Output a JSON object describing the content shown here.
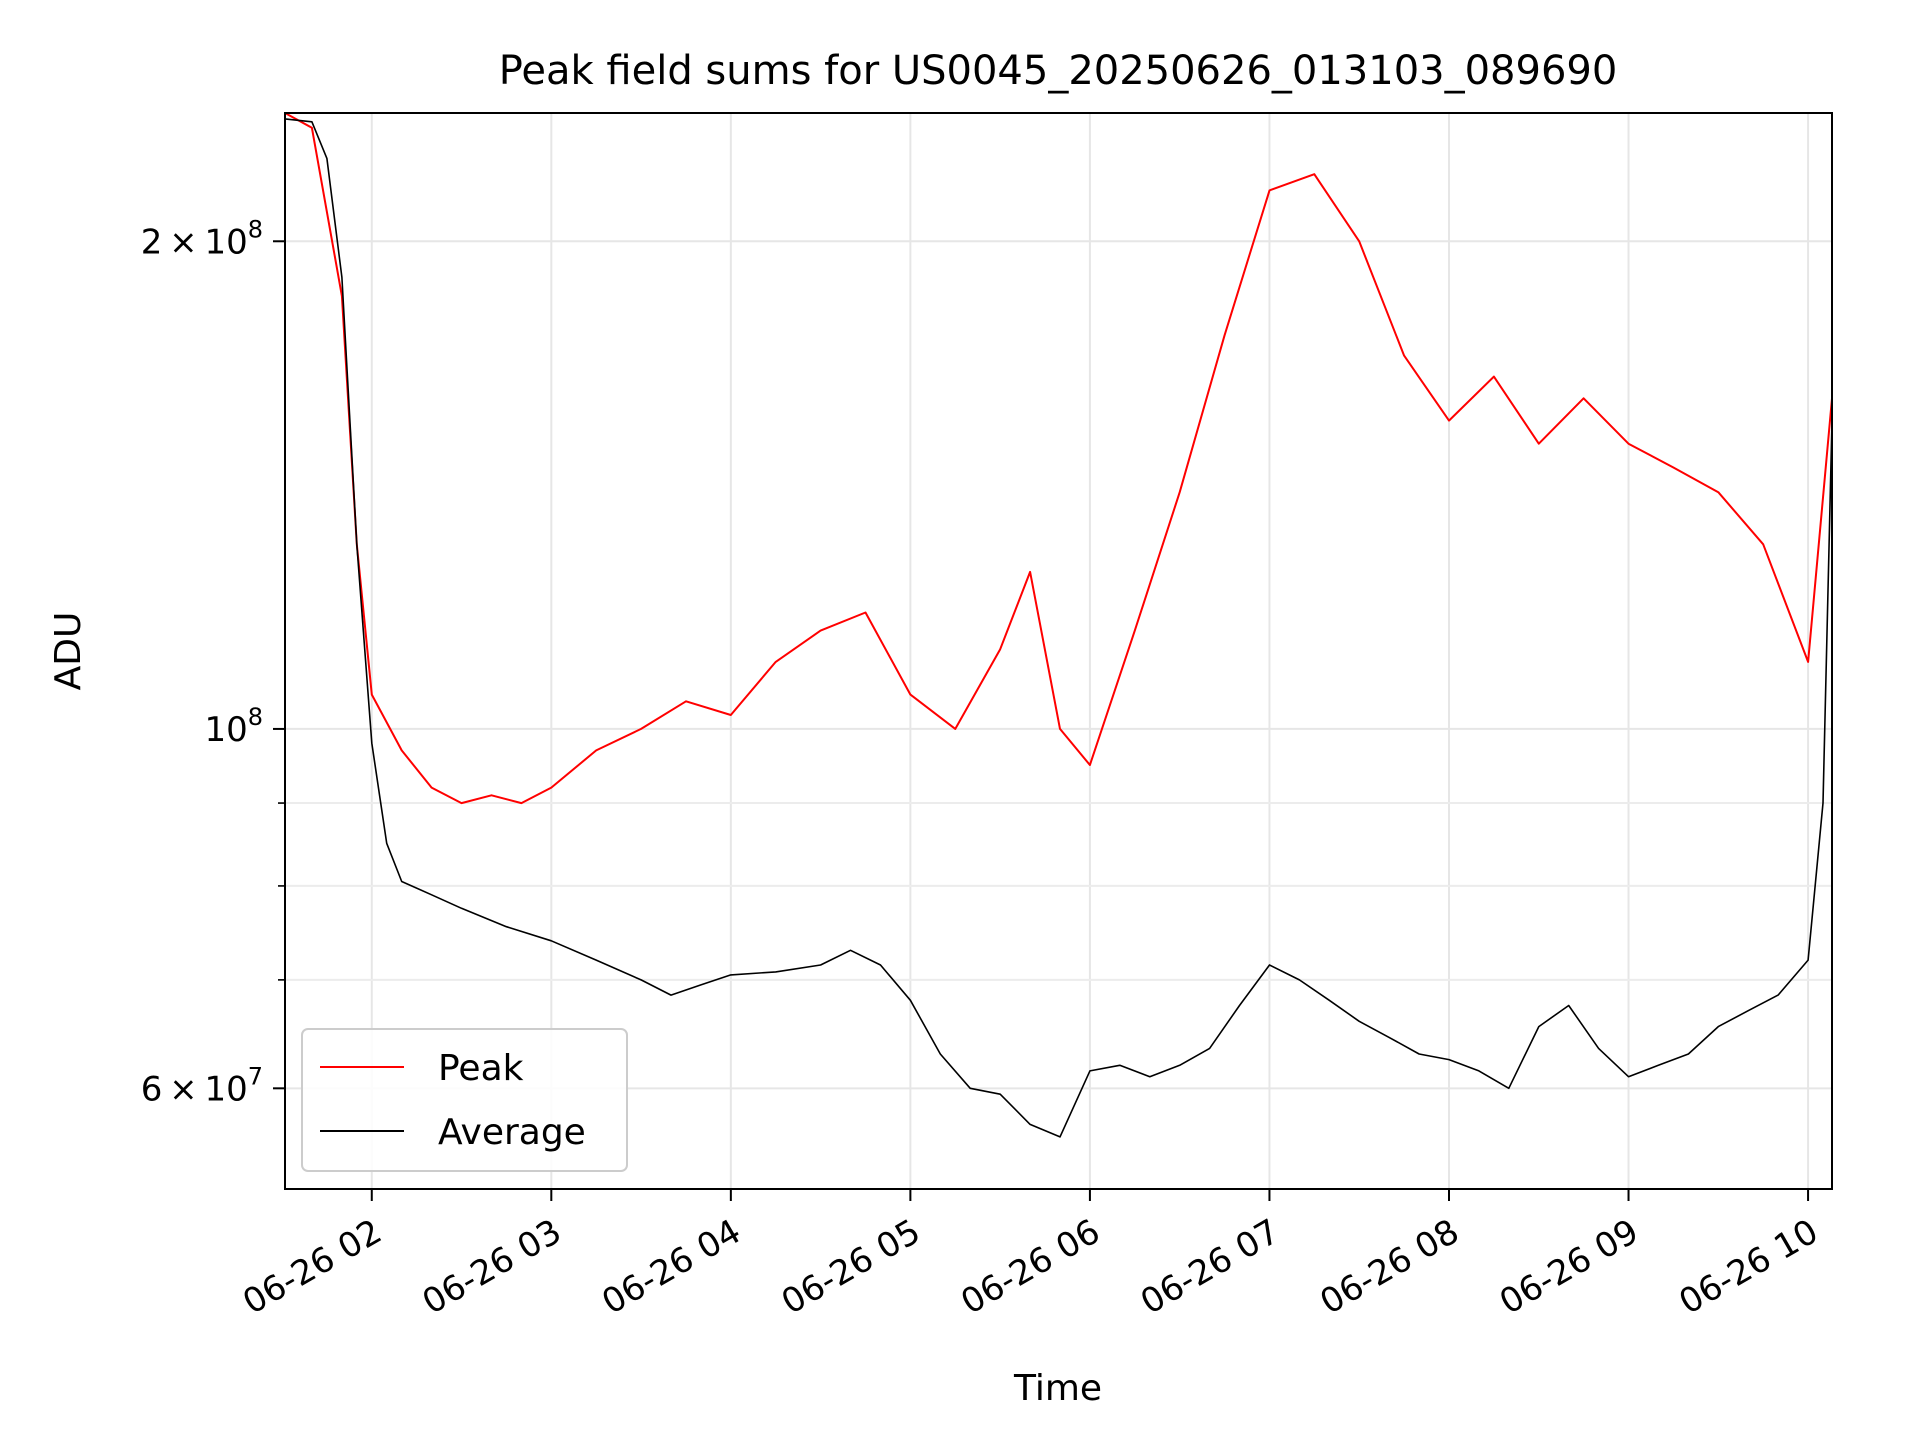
{
  "chart_data": {
    "type": "line",
    "title": "Peak field sums for US0045_20250626_013103_089690",
    "xlabel": "Time",
    "ylabel": "ADU",
    "yscale": "log",
    "xlim": [
      "2025-06-26 01:31",
      "2025-06-26 10:08"
    ],
    "ylim": [
      52000000,
      240000000
    ],
    "grid": true,
    "legend_position": "lower-left",
    "x_ticks": [
      {
        "value": "2025-06-26 02:00",
        "label": "06-26 02"
      },
      {
        "value": "2025-06-26 03:00",
        "label": "06-26 03"
      },
      {
        "value": "2025-06-26 04:00",
        "label": "06-26 04"
      },
      {
        "value": "2025-06-26 05:00",
        "label": "06-26 05"
      },
      {
        "value": "2025-06-26 06:00",
        "label": "06-26 06"
      },
      {
        "value": "2025-06-26 07:00",
        "label": "06-26 07"
      },
      {
        "value": "2025-06-26 08:00",
        "label": "06-26 08"
      },
      {
        "value": "2025-06-26 09:00",
        "label": "06-26 09"
      },
      {
        "value": "2025-06-26 10:00",
        "label": "06-26 10"
      }
    ],
    "y_major_ticks": [
      {
        "value": 60000000,
        "mantissa": "6",
        "exponent": "7"
      },
      {
        "value": 100000000,
        "mantissa": "",
        "exponent": "8"
      },
      {
        "value": 200000000,
        "mantissa": "2",
        "exponent": "8"
      }
    ],
    "y_minor_ticks": [
      70000000,
      80000000,
      90000000
    ],
    "series": [
      {
        "name": "Peak",
        "color": "#ff0000",
        "x": [
          "2025-06-26 01:31",
          "2025-06-26 01:40",
          "2025-06-26 01:50",
          "2025-06-26 01:55",
          "2025-06-26 02:00",
          "2025-06-26 02:10",
          "2025-06-26 02:20",
          "2025-06-26 02:30",
          "2025-06-26 02:40",
          "2025-06-26 02:50",
          "2025-06-26 03:00",
          "2025-06-26 03:15",
          "2025-06-26 03:30",
          "2025-06-26 03:45",
          "2025-06-26 04:00",
          "2025-06-26 04:15",
          "2025-06-26 04:30",
          "2025-06-26 04:45",
          "2025-06-26 05:00",
          "2025-06-26 05:15",
          "2025-06-26 05:30",
          "2025-06-26 05:40",
          "2025-06-26 05:50",
          "2025-06-26 06:00",
          "2025-06-26 06:15",
          "2025-06-26 06:30",
          "2025-06-26 06:45",
          "2025-06-26 07:00",
          "2025-06-26 07:15",
          "2025-06-26 07:30",
          "2025-06-26 07:45",
          "2025-06-26 08:00",
          "2025-06-26 08:15",
          "2025-06-26 08:30",
          "2025-06-26 08:45",
          "2025-06-26 09:00",
          "2025-06-26 09:15",
          "2025-06-26 09:30",
          "2025-06-26 09:45",
          "2025-06-26 10:00",
          "2025-06-26 10:08"
        ],
        "values": [
          240000000,
          235000000,
          185000000,
          130000000,
          105000000,
          97000000,
          92000000,
          90000000,
          91000000,
          90000000,
          92000000,
          97000000,
          100000000,
          104000000,
          102000000,
          110000000,
          115000000,
          118000000,
          105000000,
          100000000,
          112000000,
          125000000,
          100000000,
          95000000,
          115000000,
          140000000,
          175000000,
          215000000,
          220000000,
          200000000,
          170000000,
          155000000,
          165000000,
          150000000,
          160000000,
          150000000,
          145000000,
          140000000,
          130000000,
          110000000,
          160000000
        ]
      },
      {
        "name": "Average",
        "color": "#000000",
        "x": [
          "2025-06-26 01:31",
          "2025-06-26 01:40",
          "2025-06-26 01:45",
          "2025-06-26 01:50",
          "2025-06-26 01:55",
          "2025-06-26 02:00",
          "2025-06-26 02:05",
          "2025-06-26 02:10",
          "2025-06-26 02:20",
          "2025-06-26 02:30",
          "2025-06-26 02:45",
          "2025-06-26 03:00",
          "2025-06-26 03:15",
          "2025-06-26 03:30",
          "2025-06-26 03:40",
          "2025-06-26 03:50",
          "2025-06-26 04:00",
          "2025-06-26 04:15",
          "2025-06-26 04:30",
          "2025-06-26 04:40",
          "2025-06-26 04:50",
          "2025-06-26 05:00",
          "2025-06-26 05:10",
          "2025-06-26 05:20",
          "2025-06-26 05:30",
          "2025-06-26 05:40",
          "2025-06-26 05:50",
          "2025-06-26 06:00",
          "2025-06-26 06:10",
          "2025-06-26 06:20",
          "2025-06-26 06:30",
          "2025-06-26 06:40",
          "2025-06-26 06:50",
          "2025-06-26 07:00",
          "2025-06-26 07:10",
          "2025-06-26 07:20",
          "2025-06-26 07:30",
          "2025-06-26 07:40",
          "2025-06-26 07:50",
          "2025-06-26 08:00",
          "2025-06-26 08:10",
          "2025-06-26 08:20",
          "2025-06-26 08:30",
          "2025-06-26 08:40",
          "2025-06-26 08:50",
          "2025-06-26 09:00",
          "2025-06-26 09:10",
          "2025-06-26 09:20",
          "2025-06-26 09:30",
          "2025-06-26 09:40",
          "2025-06-26 09:50",
          "2025-06-26 10:00",
          "2025-06-26 10:05",
          "2025-06-26 10:08"
        ],
        "values": [
          238000000,
          237000000,
          225000000,
          190000000,
          130000000,
          98000000,
          85000000,
          80500000,
          79000000,
          77500000,
          75500000,
          74000000,
          72000000,
          70000000,
          68500000,
          69500000,
          70500000,
          70800000,
          71500000,
          73000000,
          71500000,
          68000000,
          63000000,
          60000000,
          59500000,
          57000000,
          56000000,
          61500000,
          62000000,
          61000000,
          62000000,
          63500000,
          67500000,
          71500000,
          70000000,
          68000000,
          66000000,
          64500000,
          63000000,
          62500000,
          61500000,
          60000000,
          65500000,
          67500000,
          63500000,
          61000000,
          62000000,
          63000000,
          65500000,
          67000000,
          68500000,
          72000000,
          90000000,
          155000000
        ]
      }
    ]
  }
}
